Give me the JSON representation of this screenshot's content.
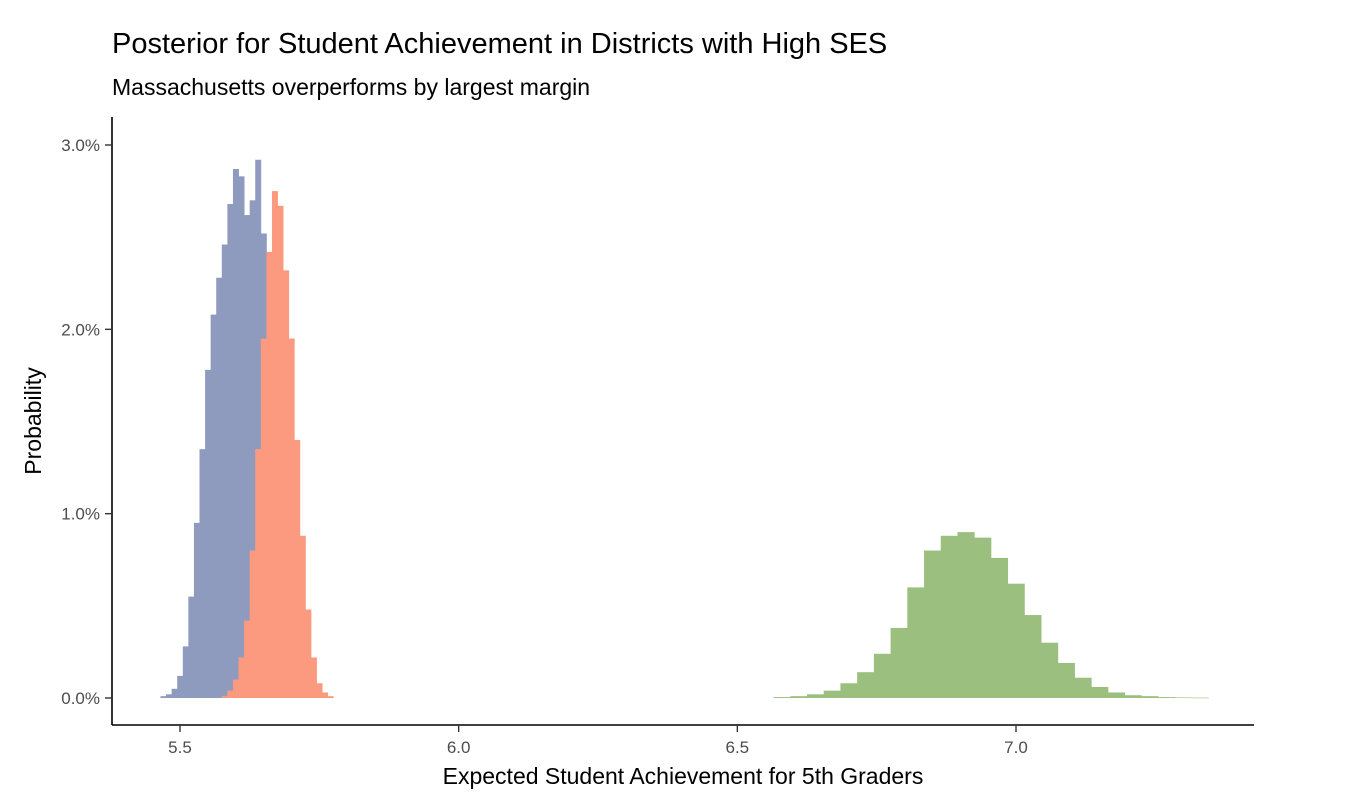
{
  "chart_data": {
    "type": "bar",
    "subtype": "histogram",
    "title": "Posterior for Student Achievement in Districts with High SES",
    "subtitle": "Massachusetts overperforms by largest margin",
    "xlabel": "Expected Student Achievement for 5th Graders",
    "ylabel": "Probability",
    "xlim": [
      5.4,
      7.43
    ],
    "ylim": [
      0,
      0.031
    ],
    "x_ticks": [
      5.5,
      6.0,
      6.5,
      7.0
    ],
    "x_tick_labels": [
      "5.5",
      "6.0",
      "6.5",
      "7.0"
    ],
    "y_ticks": [
      0,
      0.01,
      0.02,
      0.03
    ],
    "y_tick_labels": [
      "0.0%",
      "1.0%",
      "2.0%",
      "3.0%"
    ],
    "grid": false,
    "legend": "none",
    "series": [
      {
        "color": "#8e9bbf",
        "x": [
          5.47,
          5.48,
          5.49,
          5.5,
          5.51,
          5.52,
          5.53,
          5.54,
          5.55,
          5.56,
          5.57,
          5.58,
          5.59,
          5.6,
          5.61,
          5.62,
          5.63,
          5.64,
          5.65,
          5.66,
          5.67,
          5.68,
          5.69
        ],
        "values": [
          0.0001,
          0.0002,
          0.0005,
          0.0012,
          0.0028,
          0.0055,
          0.0095,
          0.0135,
          0.0178,
          0.0208,
          0.0228,
          0.0246,
          0.0268,
          0.0287,
          0.0283,
          0.0262,
          0.027,
          0.0292,
          0.0252,
          0.0178,
          0.0092,
          0.0028,
          0.0006
        ]
      },
      {
        "color": "#fc9a80",
        "x": [
          5.58,
          5.59,
          5.6,
          5.61,
          5.62,
          5.63,
          5.64,
          5.65,
          5.66,
          5.67,
          5.68,
          5.69,
          5.7,
          5.71,
          5.72,
          5.73,
          5.74,
          5.75,
          5.76,
          5.77
        ],
        "values": [
          0.0001,
          0.0004,
          0.001,
          0.0022,
          0.0042,
          0.008,
          0.0135,
          0.0195,
          0.0242,
          0.0275,
          0.0267,
          0.0232,
          0.0195,
          0.014,
          0.0088,
          0.0048,
          0.0022,
          0.0008,
          0.0003,
          0.0001
        ]
      },
      {
        "color": "#9bbf7f",
        "x": [
          6.58,
          6.61,
          6.64,
          6.67,
          6.7,
          6.73,
          6.76,
          6.79,
          6.82,
          6.85,
          6.88,
          6.91,
          6.94,
          6.97,
          7.0,
          7.03,
          7.06,
          7.09,
          7.12,
          7.15,
          7.18,
          7.21,
          7.24,
          7.27,
          7.3,
          7.33
        ],
        "values": [
          5e-05,
          0.0001,
          0.0002,
          0.0004,
          0.0008,
          0.0014,
          0.0024,
          0.0038,
          0.006,
          0.008,
          0.0088,
          0.009,
          0.0087,
          0.0076,
          0.0062,
          0.0045,
          0.003,
          0.0019,
          0.0011,
          0.0006,
          0.0003,
          0.00015,
          0.0001,
          5e-05,
          3e-05,
          2e-05
        ]
      }
    ]
  }
}
